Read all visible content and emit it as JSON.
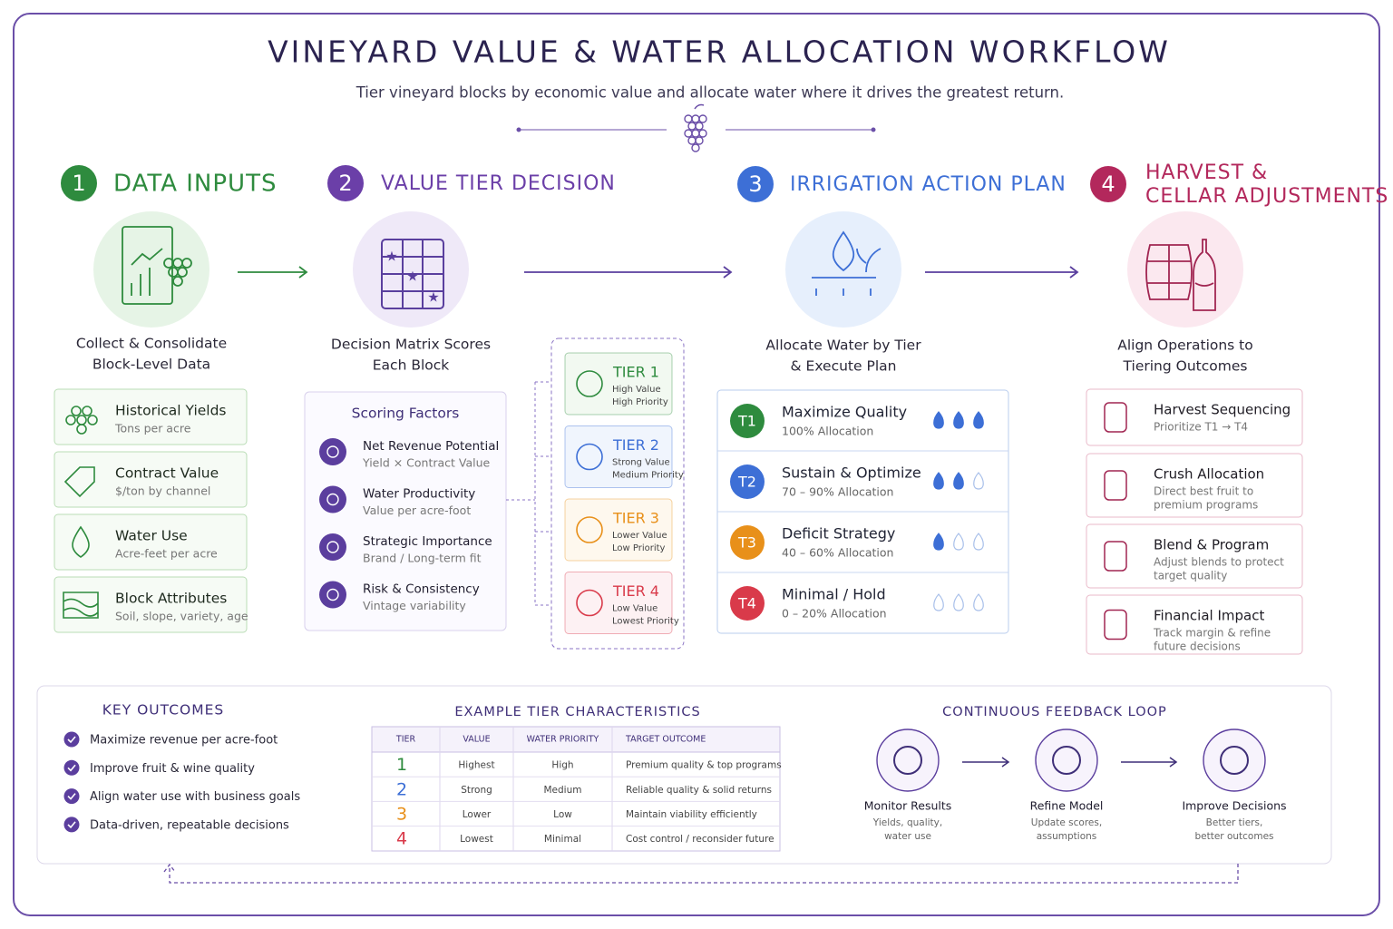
{
  "header": {
    "title": "VINEYARD VALUE & WATER ALLOCATION WORKFLOW",
    "subtitle": "Tier vineyard blocks by economic value and allocate water where it drives the greatest return."
  },
  "steps": [
    {
      "number": "1",
      "title": [
        "DATA INPUTS"
      ],
      "caption": [
        "Collect & Consolidate",
        "Block-Level Data"
      ]
    },
    {
      "number": "2",
      "title": [
        "VALUE TIER DECISION"
      ],
      "caption": [
        "Decision Matrix Scores",
        "Each Block"
      ]
    },
    {
      "number": "3",
      "title": [
        "IRRIGATION ACTION PLAN"
      ],
      "caption": [
        "Allocate Water by Tier",
        "& Execute Plan"
      ]
    },
    {
      "number": "4",
      "title": [
        "HARVEST &",
        "CELLAR ADJUSTMENTS"
      ],
      "caption": [
        "Align Operations to",
        "Tiering Outcomes"
      ]
    }
  ],
  "inputs": [
    {
      "title": "Historical Yields",
      "detail": "Tons per acre"
    },
    {
      "title": "Contract Value",
      "detail": "$/ton by channel"
    },
    {
      "title": "Water Use",
      "detail": "Acre-feet per acre"
    },
    {
      "title": "Block Attributes",
      "detail": "Soil, slope, variety, age"
    }
  ],
  "scoring": {
    "title": "Scoring Factors",
    "items": [
      {
        "title": "Net Revenue Potential",
        "detail": "Yield × Contract Value"
      },
      {
        "title": "Water Productivity",
        "detail": "Value per acre-foot"
      },
      {
        "title": "Strategic Importance",
        "detail": "Brand / Long-term fit"
      },
      {
        "title": "Risk & Consistency",
        "detail": "Vintage variability"
      }
    ]
  },
  "tiers": [
    {
      "label": "TIER 1",
      "value": "High Value",
      "priority": "High Priority"
    },
    {
      "label": "TIER 2",
      "value": "Strong Value",
      "priority": "Medium Priority"
    },
    {
      "label": "TIER 3",
      "value": "Lower Value",
      "priority": "Low Priority"
    },
    {
      "label": "TIER 4",
      "value": "Low Value",
      "priority": "Lowest Priority"
    }
  ],
  "irrigation": [
    {
      "badge": "T1",
      "title": "Maximize Quality",
      "detail": "100% Allocation",
      "water_level": 3
    },
    {
      "badge": "T2",
      "title": "Sustain & Optimize",
      "detail": "70 – 90% Allocation",
      "water_level": 2
    },
    {
      "badge": "T3",
      "title": "Deficit Strategy",
      "detail": "40 – 60% Allocation",
      "water_level": 1
    },
    {
      "badge": "T4",
      "title": "Minimal / Hold",
      "detail": "0 – 20% Allocation",
      "water_level": 0
    }
  ],
  "harvest": [
    {
      "title": "Harvest Sequencing",
      "detail": [
        "Prioritize T1 → T4"
      ]
    },
    {
      "title": "Crush Allocation",
      "detail": [
        "Direct best fruit to",
        "premium programs"
      ]
    },
    {
      "title": "Blend & Program",
      "detail": [
        "Adjust blends to protect",
        "target quality"
      ]
    },
    {
      "title": "Financial Impact",
      "detail": [
        "Track margin & refine",
        "future decisions"
      ]
    }
  ],
  "outcomes": {
    "title": "KEY OUTCOMES",
    "items": [
      "Maximize revenue per acre-foot",
      "Improve fruit & wine quality",
      "Align water use with business goals",
      "Data-driven, repeatable decisions"
    ]
  },
  "tier_table": {
    "title": "EXAMPLE TIER CHARACTERISTICS",
    "columns": [
      "TIER",
      "VALUE",
      "WATER PRIORITY",
      "TARGET OUTCOME"
    ],
    "rows": [
      [
        "1",
        "Highest",
        "High",
        "Premium quality & top programs"
      ],
      [
        "2",
        "Strong",
        "Medium",
        "Reliable quality & solid returns"
      ],
      [
        "3",
        "Lower",
        "Low",
        "Maintain viability efficiently"
      ],
      [
        "4",
        "Lowest",
        "Minimal",
        "Cost control / reconsider future"
      ]
    ]
  },
  "feedback": {
    "title": "CONTINUOUS FEEDBACK LOOP",
    "steps": [
      {
        "title": "Monitor Results",
        "detail": [
          "Yields, quality,",
          "water use"
        ]
      },
      {
        "title": "Refine Model",
        "detail": [
          "Update scores,",
          "assumptions"
        ]
      },
      {
        "title": "Improve Decisions",
        "detail": [
          "Better tiers,",
          "better outcomes"
        ]
      }
    ]
  }
}
